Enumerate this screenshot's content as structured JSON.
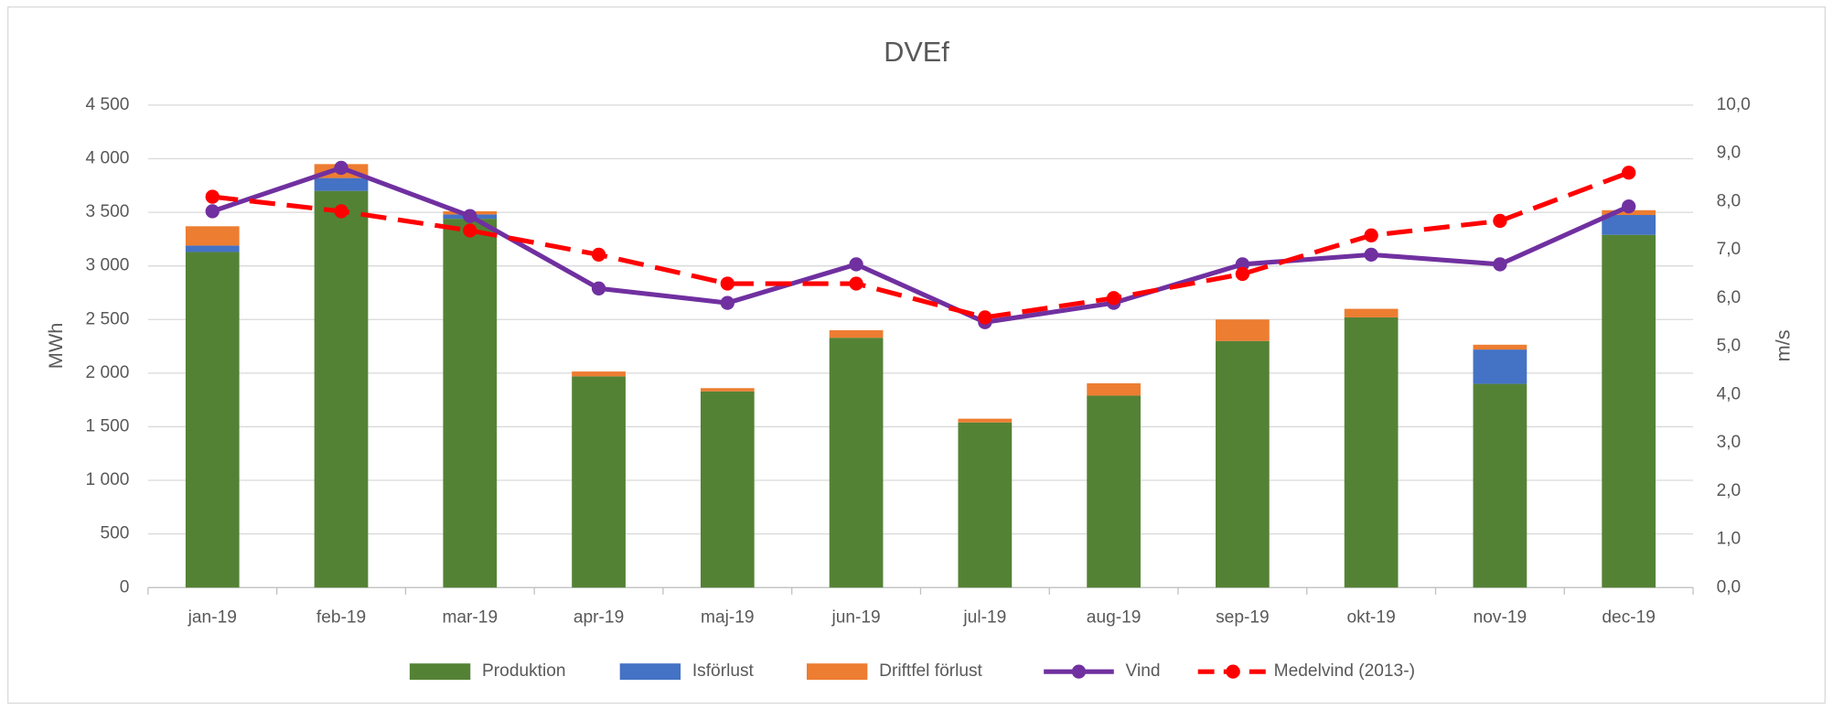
{
  "chart_data": {
    "type": "bar",
    "title": "DVEf",
    "y_label": "MWh",
    "y2_label": "m/s",
    "categories": [
      "jan-19",
      "feb-19",
      "mar-19",
      "apr-19",
      "maj-19",
      "jun-19",
      "jul-19",
      "aug-19",
      "sep-19",
      "okt-19",
      "nov-19",
      "dec-19"
    ],
    "ylim": [
      0,
      4500
    ],
    "yticks": [
      0,
      500,
      {
        "value": 1000,
        "label": "1 000"
      },
      {
        "value": 1500,
        "label": "1 500"
      },
      {
        "value": 2000,
        "label": "2 000"
      },
      {
        "value": 2500,
        "label": "2 500"
      },
      {
        "value": 3000,
        "label": "3 000"
      },
      {
        "value": 3500,
        "label": "3 500"
      },
      {
        "value": 4000,
        "label": "4 000"
      },
      {
        "value": 4500,
        "label": "4 500"
      }
    ],
    "y2lim": [
      0,
      10
    ],
    "y2ticks": [
      {
        "value": 0,
        "label": "0,0"
      },
      {
        "value": 1,
        "label": "1,0"
      },
      {
        "value": 2,
        "label": "2,0"
      },
      {
        "value": 3,
        "label": "3,0"
      },
      {
        "value": 4,
        "label": "4,0"
      },
      {
        "value": 5,
        "label": "5,0"
      },
      {
        "value": 6,
        "label": "6,0"
      },
      {
        "value": 7,
        "label": "7,0"
      },
      {
        "value": 8,
        "label": "8,0"
      },
      {
        "value": 9,
        "label": "9,0"
      },
      {
        "value": 10,
        "label": "10,0"
      }
    ],
    "grid": true,
    "stacked": true,
    "legend": "bottom",
    "series": [
      {
        "name": "Produktion",
        "type": "bar",
        "color": "#548235",
        "values": [
          3130,
          3700,
          3440,
          1970,
          1830,
          2330,
          1540,
          1790,
          2300,
          2520,
          1900,
          3290
        ]
      },
      {
        "name": "Isförlust",
        "type": "bar",
        "color": "#4472c4",
        "values": [
          60,
          120,
          40,
          0,
          0,
          0,
          0,
          0,
          0,
          0,
          320,
          185
        ]
      },
      {
        "name": "Driftfel förlust",
        "type": "bar",
        "color": "#ed7d31",
        "values": [
          180,
          130,
          30,
          45,
          30,
          70,
          35,
          115,
          200,
          80,
          45,
          45
        ]
      },
      {
        "name": "Vind",
        "type": "line",
        "axis": "y2",
        "color": "#7030a0",
        "dashed": false,
        "values": [
          7.8,
          8.7,
          7.7,
          6.2,
          5.9,
          6.7,
          5.5,
          5.9,
          6.7,
          6.9,
          6.7,
          7.9
        ]
      },
      {
        "name": "Medelvind (2013-)",
        "type": "line",
        "axis": "y2",
        "color": "#ff0000",
        "dashed": true,
        "values": [
          8.1,
          7.8,
          7.4,
          6.9,
          6.3,
          6.3,
          5.6,
          6.0,
          6.5,
          7.3,
          7.6,
          8.6
        ]
      }
    ]
  }
}
